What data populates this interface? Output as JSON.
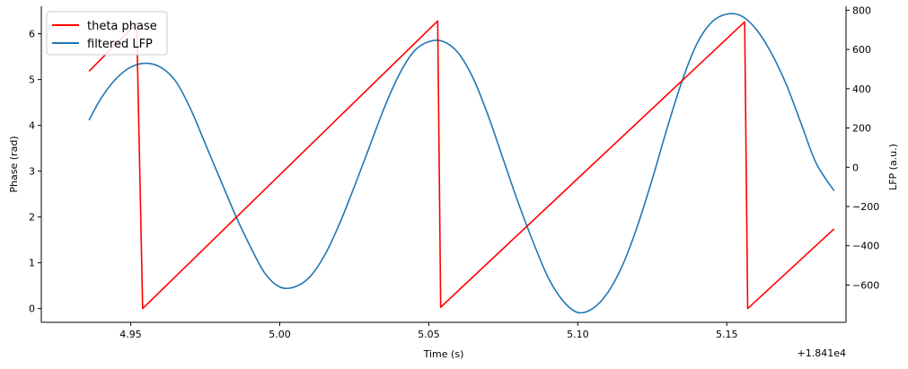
{
  "chart_data": {
    "type": "line",
    "title": "",
    "xlabel": "Time (s)",
    "x_offset_label": "+1.841e4",
    "ylabel_left": "Phase (rad)",
    "ylabel_right": "LFP (a.u.)",
    "xlim": [
      4.92,
      5.19
    ],
    "ylim_left": [
      -0.3,
      6.6
    ],
    "ylim_right": [
      -790,
      820
    ],
    "x_ticks": [
      4.95,
      5.0,
      5.05,
      5.1,
      5.15
    ],
    "x_tick_labels": [
      "4.95",
      "5.00",
      "5.05",
      "5.10",
      "5.15"
    ],
    "y_left_ticks": [
      0,
      1,
      2,
      3,
      4,
      5,
      6
    ],
    "y_left_tick_labels": [
      "0",
      "1",
      "2",
      "3",
      "4",
      "5",
      "6"
    ],
    "y_right_ticks": [
      -600,
      -400,
      -200,
      0,
      200,
      400,
      600,
      800
    ],
    "y_right_tick_labels": [
      "−600",
      "−400",
      "−200",
      "0",
      "200",
      "400",
      "600",
      "800"
    ],
    "grid": false,
    "legend_position": "top-left",
    "series": [
      {
        "name": "theta phase",
        "axis": "left",
        "color": "#ff0000",
        "x": [
          4.936,
          4.952,
          4.954,
          5.053,
          5.054,
          5.156,
          5.157,
          5.186
        ],
        "y": [
          5.18,
          6.23,
          0.0,
          6.28,
          0.03,
          6.26,
          0.0,
          1.74
        ]
      },
      {
        "name": "filtered LFP",
        "axis": "right",
        "color": "#1f77b4",
        "x": [
          4.936,
          4.94,
          4.945,
          4.95,
          4.955,
          4.96,
          4.965,
          4.97,
          4.975,
          4.98,
          4.985,
          4.99,
          4.995,
          5.0,
          5.005,
          5.01,
          5.015,
          5.02,
          5.025,
          5.03,
          5.035,
          5.04,
          5.045,
          5.05,
          5.055,
          5.06,
          5.065,
          5.07,
          5.075,
          5.08,
          5.085,
          5.09,
          5.095,
          5.1,
          5.105,
          5.11,
          5.115,
          5.12,
          5.125,
          5.13,
          5.135,
          5.14,
          5.145,
          5.15,
          5.155,
          5.16,
          5.165,
          5.17,
          5.175,
          5.18,
          5.186
        ],
        "y": [
          240,
          350,
          450,
          510,
          530,
          510,
          440,
          300,
          120,
          -60,
          -240,
          -400,
          -540,
          -610,
          -610,
          -560,
          -450,
          -290,
          -100,
          100,
          300,
          470,
          590,
          640,
          640,
          580,
          450,
          260,
          40,
          -180,
          -380,
          -560,
          -680,
          -740,
          -720,
          -640,
          -500,
          -300,
          -60,
          200,
          440,
          630,
          740,
          780,
          770,
          700,
          580,
          420,
          220,
          20,
          -120
        ]
      }
    ]
  }
}
